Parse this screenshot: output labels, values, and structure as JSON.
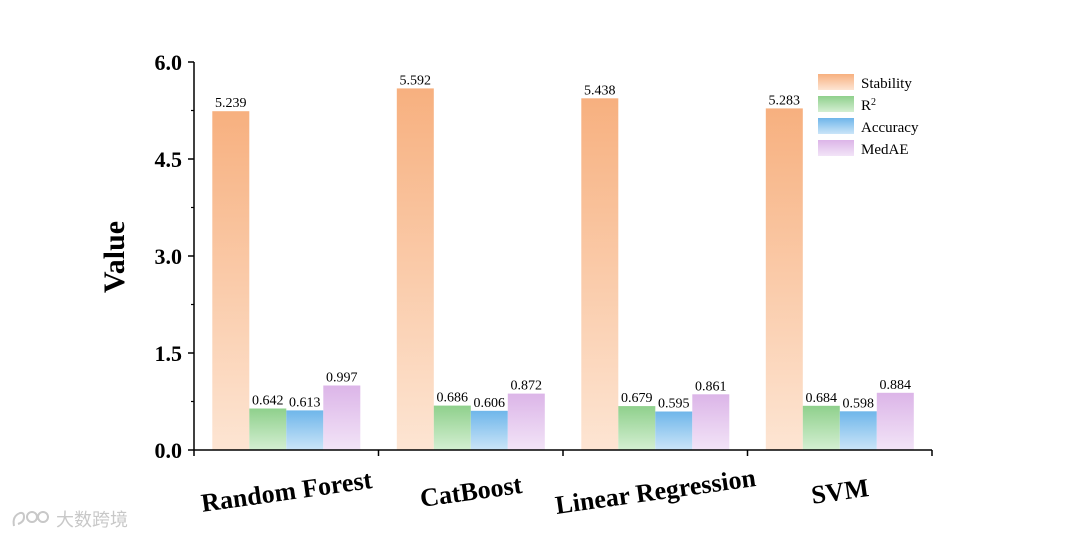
{
  "chart_data": {
    "type": "bar",
    "title": "",
    "xlabel": "",
    "ylabel": "Value",
    "ylim": [
      0,
      6
    ],
    "yticks": [
      "0.0",
      "1.5",
      "3.0",
      "4.5",
      "6.0"
    ],
    "categories": [
      "Random Forest",
      "CatBoost",
      "Linear Regression",
      "SVM"
    ],
    "series": [
      {
        "name": "Stability",
        "values": [
          5.239,
          5.592,
          5.438,
          5.283
        ],
        "labels": [
          "5.239",
          "5.592",
          "5.438",
          "5.283"
        ],
        "color_top": "#f7b07f",
        "color_bottom": "#fde5d3"
      },
      {
        "name": "R",
        "sup": "2",
        "values": [
          0.642,
          0.686,
          0.679,
          0.684
        ],
        "labels": [
          "0.642",
          "0.686",
          "0.679",
          "0.684"
        ],
        "color_top": "#8fd08c",
        "color_bottom": "#d4efd2"
      },
      {
        "name": "Accuracy",
        "values": [
          0.613,
          0.606,
          0.595,
          0.598
        ],
        "labels": [
          "0.613",
          "0.606",
          "0.595",
          "0.598"
        ],
        "color_top": "#6fb6ea",
        "color_bottom": "#cbe5f8"
      },
      {
        "name": "MedAE",
        "values": [
          0.997,
          0.872,
          0.861,
          0.884
        ],
        "labels": [
          "0.997",
          "0.872",
          "0.861",
          "0.884"
        ],
        "color_top": "#dcb5e8",
        "color_bottom": "#f2e4f7"
      }
    ],
    "legend_position": "top-right",
    "grid": false
  },
  "watermark": {
    "text": "大数跨境",
    "icon": "brand-logo-icon"
  }
}
